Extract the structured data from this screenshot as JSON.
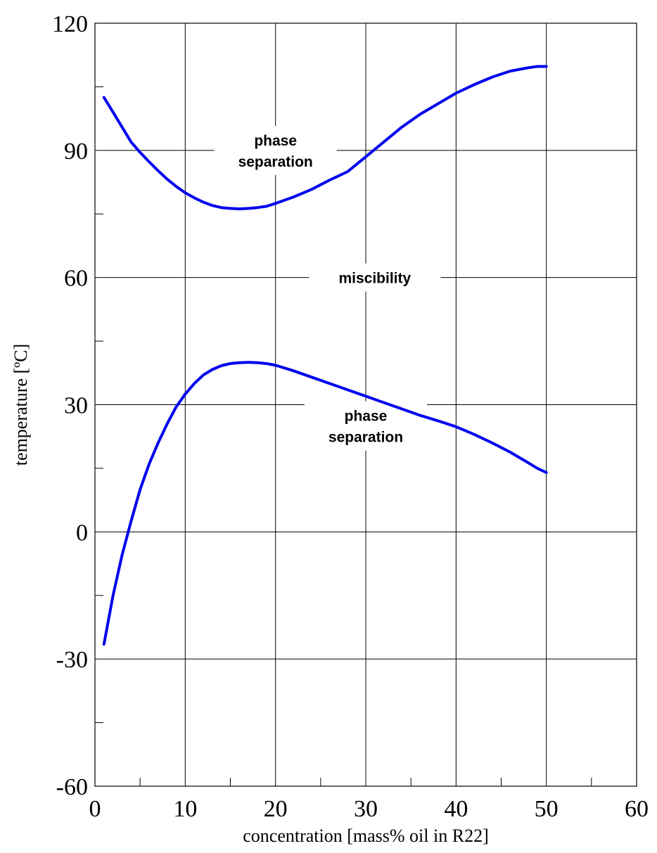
{
  "chart_data": {
    "type": "line",
    "title": "",
    "xlabel": "concentration [mass% oil in R22]",
    "ylabel": "temperature [ºC]",
    "xlim": [
      0,
      60
    ],
    "ylim": [
      -60,
      120
    ],
    "x_ticks": [
      0,
      10,
      20,
      30,
      40,
      50,
      60
    ],
    "y_ticks": [
      -60,
      -30,
      0,
      30,
      60,
      90,
      120
    ],
    "x_tick_labels": [
      "0",
      "10",
      "20",
      "30",
      "40",
      "50",
      "60"
    ],
    "y_tick_labels": [
      "-60",
      "-30",
      "0",
      "30",
      "60",
      "90",
      "120"
    ],
    "grid": true,
    "line_color": "#0000ee",
    "series": [
      {
        "x": [
          1,
          2,
          3,
          4,
          5,
          6,
          7,
          8,
          9,
          10,
          11,
          12,
          13,
          14,
          15,
          16,
          17,
          18,
          19,
          20,
          22,
          24,
          26,
          28,
          30,
          32,
          34,
          36,
          38,
          40,
          42,
          44,
          46,
          48,
          49,
          50
        ],
        "values": [
          102.5,
          99,
          95.5,
          92,
          89.5,
          87.3,
          85.2,
          83.2,
          81.5,
          80,
          78.8,
          77.8,
          77,
          76.5,
          76.3,
          76.2,
          76.3,
          76.5,
          76.8,
          77.5,
          79,
          80.8,
          83,
          85,
          88.5,
          92,
          95.5,
          98.5,
          101,
          103.5,
          105.5,
          107.3,
          108.7,
          109.5,
          109.8,
          109.8
        ]
      },
      {
        "x": [
          1,
          2,
          3,
          4,
          5,
          6,
          7,
          8,
          9,
          10,
          11,
          12,
          13,
          14,
          15,
          16,
          17,
          18,
          19,
          20,
          22,
          24,
          26,
          28,
          30,
          32,
          34,
          36,
          38,
          40,
          42,
          44,
          46,
          48,
          49,
          50
        ],
        "values": [
          -26.5,
          -15,
          -5.5,
          2.5,
          10,
          16,
          21,
          25.5,
          29.5,
          32.5,
          35,
          37,
          38.3,
          39.2,
          39.7,
          39.9,
          40,
          39.9,
          39.7,
          39.3,
          38,
          36.5,
          35,
          33.5,
          32,
          30.5,
          29,
          27.5,
          26.2,
          24.8,
          23,
          21,
          18.8,
          16.3,
          15,
          14
        ]
      }
    ],
    "annotations": [
      {
        "text_lines": [
          "phase",
          "separation"
        ],
        "x": 20,
        "y": 90
      },
      {
        "text_lines": [
          "miscibility"
        ],
        "x": 31,
        "y": 60
      },
      {
        "text_lines": [
          "phase",
          "separation"
        ],
        "x": 30,
        "y": 25
      }
    ]
  }
}
